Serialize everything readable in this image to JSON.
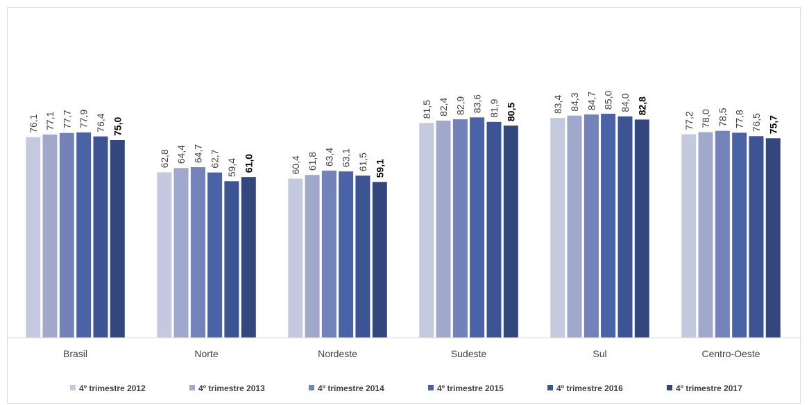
{
  "chart_data": {
    "type": "bar",
    "categories": [
      "Brasil",
      "Norte",
      "Nordeste",
      "Sudeste",
      "Sul",
      "Centro-Oeste"
    ],
    "series": [
      {
        "name": "4º trimestre 2012",
        "color": "#c5c9dd",
        "bold": false,
        "values": [
          76.1,
          62.8,
          60.4,
          81.5,
          83.4,
          77.2
        ],
        "labels": [
          "76,1",
          "62,8",
          "60,4",
          "81,5",
          "83,4",
          "77,2"
        ]
      },
      {
        "name": "4º trimestre 2013",
        "color": "#a0a8cc",
        "bold": false,
        "values": [
          77.1,
          64.4,
          61.8,
          82.4,
          84.3,
          78.0
        ],
        "labels": [
          "77,1",
          "64,4",
          "61,8",
          "82,4",
          "84,3",
          "78,0"
        ]
      },
      {
        "name": "4º trimestre 2014",
        "color": "#7382b9",
        "bold": false,
        "values": [
          77.7,
          64.7,
          63.4,
          82.9,
          84.7,
          78.5
        ],
        "labels": [
          "77,7",
          "64,7",
          "63,4",
          "82,9",
          "84,7",
          "78,5"
        ]
      },
      {
        "name": "4º trimestre 2015",
        "color": "#4a62a6",
        "bold": false,
        "values": [
          77.9,
          62.7,
          63.1,
          83.6,
          85.0,
          77.8
        ],
        "labels": [
          "77,9",
          "62,7",
          "63,1",
          "83,6",
          "85,0",
          "77,8"
        ]
      },
      {
        "name": "4º trimestre 2016",
        "color": "#3d5494",
        "bold": false,
        "values": [
          76.4,
          59.4,
          61.5,
          81.9,
          84.0,
          76.5
        ],
        "labels": [
          "76,4",
          "59,4",
          "61,5",
          "81,9",
          "84,0",
          "76,5"
        ]
      },
      {
        "name": "4º trimestre 2017",
        "color": "#33477d",
        "bold": true,
        "values": [
          75.0,
          61.0,
          59.1,
          80.5,
          82.8,
          75.7
        ],
        "labels": [
          "75,0",
          "61,0",
          "59,1",
          "80,5",
          "82,8",
          "75,7"
        ]
      }
    ],
    "title": "",
    "xlabel": "",
    "ylabel": "",
    "ylim": [
      0,
      100
    ],
    "grid": false,
    "legend_position": "bottom"
  }
}
